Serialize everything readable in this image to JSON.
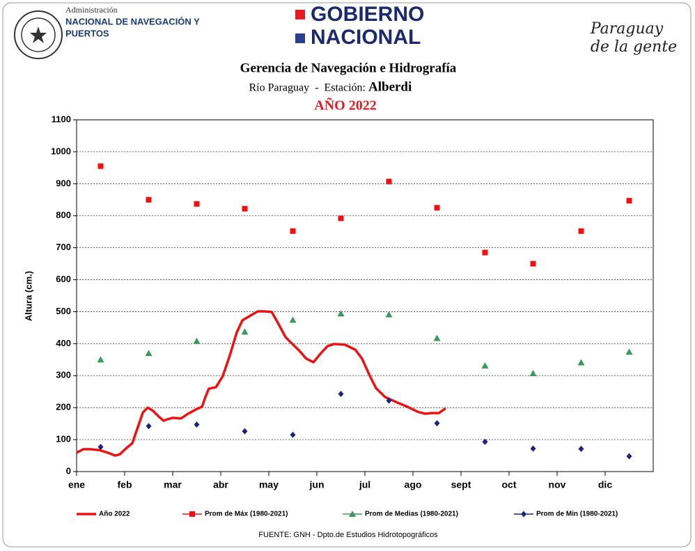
{
  "header": {
    "admin_line1": "Administración",
    "admin_line2": "NACIONAL DE NAVEGACIÓN Y",
    "admin_line3": "PUERTOS",
    "gov_line1": "GOBIERNO",
    "gov_line2": "NACIONAL",
    "slogan_line1": "Paraguay",
    "slogan_line2": "de la gente"
  },
  "chart_data": {
    "type": "line",
    "title": "Gerencia de Navegación e Hidrografía",
    "station_prefix": "Río Paraguay  -  Estación:",
    "station": "Alberdi",
    "year_title": "AÑO 2022",
    "y_label": "Altura (cm.)",
    "source": "FUENTE:  GNH - Dpto.de Estudios Hidrotopográficos",
    "categories": [
      "ene",
      "feb",
      "mar",
      "abr",
      "may",
      "jun",
      "jul",
      "ago",
      "sept",
      "oct",
      "nov",
      "dic"
    ],
    "xlim": [
      0,
      12
    ],
    "ylim": [
      0,
      1100
    ],
    "yticks": [
      0,
      100,
      200,
      300,
      400,
      500,
      600,
      700,
      800,
      900,
      1000,
      1100
    ],
    "grid": true,
    "series": [
      {
        "name": "Año 2022",
        "type": "line",
        "color": "#ee1111",
        "x": [
          0,
          0.14,
          0.29,
          0.48,
          0.65,
          0.8,
          0.9,
          1.01,
          1.16,
          1.23,
          1.3,
          1.38,
          1.48,
          1.59,
          1.71,
          1.81,
          1.88,
          2,
          2.17,
          2.32,
          2.48,
          2.61,
          2.68,
          2.75,
          2.9,
          3.04,
          3.19,
          3.33,
          3.45,
          3.62,
          3.77,
          3.91,
          4.06,
          4.2,
          4.35,
          4.49,
          4.64,
          4.78,
          4.93,
          5.07,
          5.22,
          5.36,
          5.58,
          5.8,
          5.94,
          6.09,
          6.23,
          6.42,
          6.67,
          6.88,
          7.1,
          7.25,
          7.39,
          7.54,
          7.68
        ],
        "values": [
          59,
          70,
          70,
          67,
          59,
          50,
          54,
          70,
          89,
          120,
          150,
          185,
          200,
          190,
          172,
          159,
          163,
          168,
          166,
          181,
          194,
          203,
          233,
          259,
          264,
          298,
          364,
          434,
          473,
          488,
          501,
          501,
          499,
          462,
          420,
          399,
          377,
          353,
          342,
          368,
          392,
          399,
          397,
          381,
          353,
          303,
          261,
          233,
          216,
          203,
          187,
          181,
          183,
          183,
          198
        ]
      },
      {
        "name": "Prom de Máx (1980-2021)",
        "type": "scatter",
        "marker": "square",
        "color": "#ee1111",
        "x": [
          0.5,
          1.5,
          2.5,
          3.5,
          4.5,
          5.5,
          6.5,
          7.5,
          8.5,
          9.5,
          10.5,
          11.5
        ],
        "values": [
          955,
          850,
          837,
          822,
          752,
          792,
          907,
          825,
          685,
          650,
          752,
          847
        ]
      },
      {
        "name": "Prom de Medias (1980-2021)",
        "type": "scatter",
        "marker": "triangle",
        "color": "#3a9a5a",
        "x": [
          0.5,
          1.5,
          2.5,
          3.5,
          4.5,
          5.5,
          6.5,
          7.5,
          8.5,
          9.5,
          10.5,
          11.5
        ],
        "values": [
          350,
          370,
          408,
          437,
          474,
          494,
          491,
          417,
          331,
          307,
          341,
          374
        ]
      },
      {
        "name": "Prom de Min (1980-2021)",
        "type": "scatter",
        "marker": "diamond",
        "color": "#1a237e",
        "x": [
          0.5,
          1.5,
          2.5,
          3.5,
          4.5,
          5.5,
          6.5,
          7.5,
          8.5,
          9.5,
          10.5,
          11.5
        ],
        "values": [
          77,
          142,
          147,
          126,
          115,
          243,
          222,
          151,
          93,
          72,
          71,
          48
        ]
      }
    ]
  }
}
